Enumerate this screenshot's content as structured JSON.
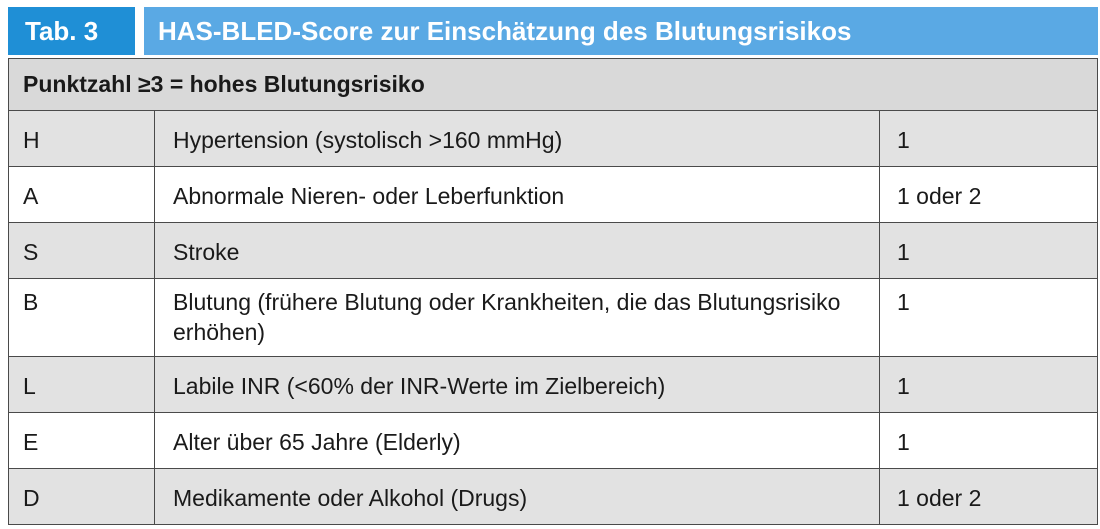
{
  "tab_label": "Tab. 3",
  "title": "HAS-BLED-Score zur Einschätzung des Blutungsrisikos",
  "header_note": "Punktzahl ≥3 = hohes Blutungsrisiko",
  "rows": [
    {
      "letter": "H",
      "description": "Hypertension (systolisch >160 mmHg)",
      "points": "1"
    },
    {
      "letter": "A",
      "description": "Abnormale Nieren- oder Leberfunktion",
      "points": "1 oder 2"
    },
    {
      "letter": "S",
      "description": "Stroke",
      "points": "1"
    },
    {
      "letter": "B",
      "description": "Blutung (frühere Blutung oder Krankheiten, die das Blutungsrisiko erhöhen)",
      "points": "1"
    },
    {
      "letter": "L",
      "description": "Labile INR (<60% der INR-Werte im Zielbereich)",
      "points": "1"
    },
    {
      "letter": "E",
      "description": "Alter über 65 Jahre (Elderly)",
      "points": "1"
    },
    {
      "letter": "D",
      "description": "Medikamente oder Alkohol (Drugs)",
      "points": "1 oder 2"
    }
  ]
}
